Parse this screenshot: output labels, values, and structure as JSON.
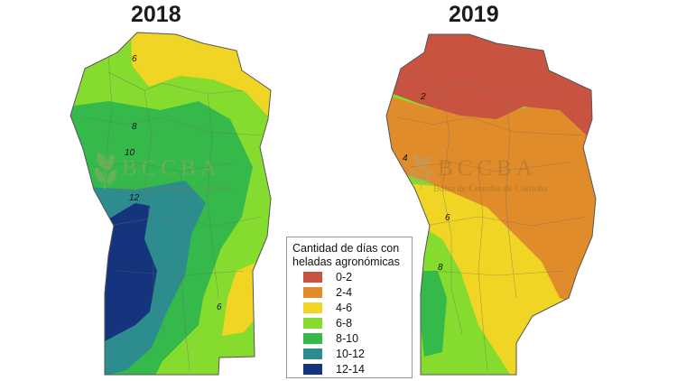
{
  "maps": [
    {
      "year": "2018",
      "contour_labels": [
        "6",
        "8",
        "10",
        "12",
        "6"
      ]
    },
    {
      "year": "2019",
      "contour_labels": [
        "2",
        "4",
        "6",
        "8"
      ]
    }
  ],
  "watermark": {
    "main": "BCCBA",
    "sub": "Bolsa de Cereales de Córdoba"
  },
  "legend": {
    "title": "Cantidad de días con heladas agronómicas",
    "items": [
      {
        "label": "0-2",
        "color": "#c85340"
      },
      {
        "label": "2-4",
        "color": "#e08c2a"
      },
      {
        "label": "4-6",
        "color": "#f0d524"
      },
      {
        "label": "6-8",
        "color": "#86dc2e"
      },
      {
        "label": "8-10",
        "color": "#34b94a"
      },
      {
        "label": "10-12",
        "color": "#2d8c8e"
      },
      {
        "label": "12-14",
        "color": "#14347e"
      }
    ]
  }
}
